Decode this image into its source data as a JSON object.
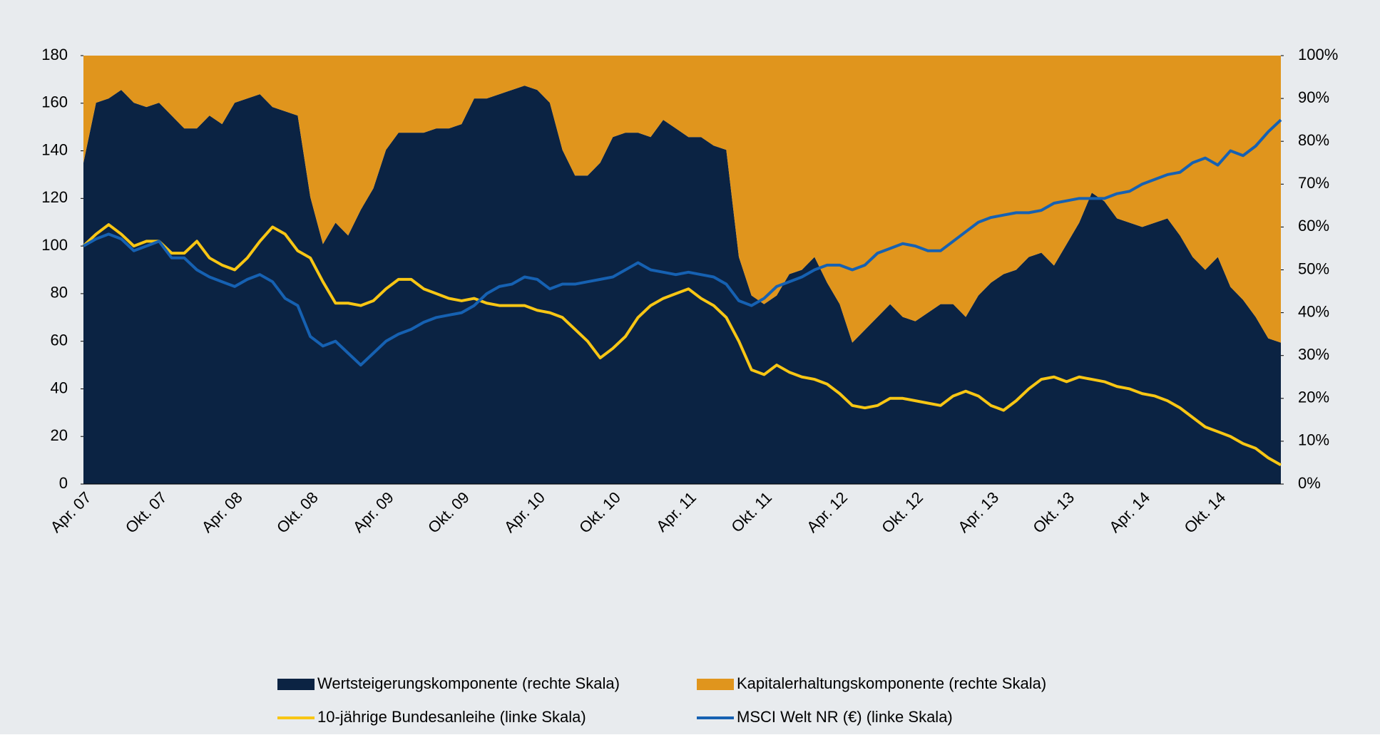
{
  "chart_data": {
    "type": "area-line",
    "categories": [
      "Apr. 07",
      null,
      null,
      null,
      null,
      null,
      "Okt. 07",
      null,
      null,
      null,
      null,
      null,
      "Apr. 08",
      null,
      null,
      null,
      null,
      null,
      "Okt. 08",
      null,
      null,
      null,
      null,
      null,
      "Apr. 09",
      null,
      null,
      null,
      null,
      null,
      "Okt. 09",
      null,
      null,
      null,
      null,
      null,
      "Apr. 10",
      null,
      null,
      null,
      null,
      null,
      "Okt. 10",
      null,
      null,
      null,
      null,
      null,
      "Apr. 11",
      null,
      null,
      null,
      null,
      null,
      "Okt. 11",
      null,
      null,
      null,
      null,
      null,
      "Apr. 12",
      null,
      null,
      null,
      null,
      null,
      "Okt. 12",
      null,
      null,
      null,
      null,
      null,
      "Apr. 13",
      null,
      null,
      null,
      null,
      null,
      "Okt. 13",
      null,
      null,
      null,
      null,
      null,
      "Apr. 14",
      null,
      null,
      null,
      null,
      null,
      "Okt. 14",
      null,
      null,
      null,
      null,
      null
    ],
    "series": [
      {
        "name": "Wertsteigerungskomponente (rechte Skala)",
        "type": "area",
        "axis": "y2",
        "color": "#0b2343",
        "values": [
          75,
          89,
          90,
          92,
          89,
          88,
          89,
          86,
          83,
          83,
          86,
          84,
          89,
          90,
          91,
          88,
          87,
          86,
          67,
          56,
          61,
          58,
          64,
          69,
          78,
          82,
          82,
          82,
          83,
          83,
          84,
          90,
          90,
          91,
          92,
          93,
          92,
          89,
          78,
          72,
          72,
          75,
          81,
          82,
          82,
          81,
          85,
          83,
          81,
          81,
          79,
          78,
          53,
          44,
          42,
          44,
          49,
          50,
          53,
          47,
          42,
          33,
          36,
          39,
          42,
          39,
          38,
          40,
          42,
          42,
          39,
          44,
          47,
          49,
          50,
          53,
          54,
          51,
          56,
          61,
          68,
          66,
          62,
          61,
          60,
          61,
          62,
          58,
          53,
          50,
          53,
          46,
          43,
          39,
          34,
          33
        ]
      },
      {
        "name": "Kapitalerhaltungskomponente (rechte Skala)",
        "type": "area",
        "axis": "y2",
        "color": "#e0951d",
        "values": [
          25,
          11,
          10,
          8,
          11,
          12,
          11,
          14,
          17,
          17,
          14,
          16,
          11,
          10,
          9,
          12,
          13,
          14,
          33,
          44,
          39,
          42,
          36,
          31,
          22,
          18,
          18,
          18,
          17,
          17,
          16,
          10,
          10,
          9,
          8,
          7,
          8,
          11,
          22,
          28,
          28,
          25,
          19,
          18,
          18,
          19,
          15,
          17,
          19,
          19,
          21,
          22,
          47,
          56,
          58,
          56,
          51,
          50,
          47,
          53,
          58,
          67,
          64,
          61,
          58,
          61,
          62,
          60,
          58,
          58,
          61,
          56,
          53,
          51,
          50,
          47,
          46,
          49,
          44,
          39,
          32,
          34,
          38,
          39,
          40,
          39,
          38,
          42,
          47,
          50,
          47,
          54,
          57,
          61,
          66,
          67
        ]
      },
      {
        "name": "10-jährige  Bundesanleihe (linke Skala)",
        "type": "line",
        "axis": "y",
        "color": "#f8c614",
        "values": [
          100,
          105,
          109,
          105,
          100,
          102,
          102,
          97,
          97,
          102,
          95,
          92,
          90,
          95,
          102,
          108,
          105,
          98,
          95,
          85,
          76,
          76,
          75,
          77,
          82,
          86,
          86,
          82,
          80,
          78,
          77,
          78,
          76,
          75,
          75,
          75,
          73,
          72,
          70,
          65,
          60,
          53,
          57,
          62,
          70,
          75,
          78,
          80,
          82,
          78,
          75,
          70,
          60,
          48,
          46,
          50,
          47,
          45,
          44,
          42,
          38,
          33,
          32,
          33,
          36,
          36,
          35,
          34,
          33,
          37,
          39,
          37,
          33,
          31,
          35,
          40,
          44,
          45,
          43,
          45,
          44,
          43,
          41,
          40,
          38,
          37,
          35,
          32,
          28,
          24,
          22,
          20,
          17,
          15,
          11,
          8
        ]
      },
      {
        "name": "MSCI Welt NR (€) (linke Skala)",
        "type": "line",
        "axis": "y",
        "color": "#1661b2",
        "values": [
          100,
          103,
          105,
          103,
          98,
          100,
          102,
          95,
          95,
          90,
          87,
          85,
          83,
          86,
          88,
          85,
          78,
          75,
          62,
          58,
          60,
          55,
          50,
          55,
          60,
          63,
          65,
          68,
          70,
          71,
          72,
          75,
          80,
          83,
          84,
          87,
          86,
          82,
          84,
          84,
          85,
          86,
          87,
          90,
          93,
          90,
          89,
          88,
          89,
          88,
          87,
          84,
          77,
          75,
          78,
          83,
          85,
          87,
          90,
          92,
          92,
          90,
          92,
          97,
          99,
          101,
          100,
          98,
          98,
          102,
          106,
          110,
          112,
          113,
          114,
          114,
          115,
          118,
          119,
          120,
          120,
          120,
          122,
          123,
          126,
          128,
          130,
          131,
          135,
          137,
          134,
          140,
          138,
          142,
          148,
          153
        ]
      }
    ],
    "ylim": [
      0,
      180
    ],
    "yticks": [
      0,
      20,
      40,
      60,
      80,
      100,
      120,
      140,
      160,
      180
    ],
    "y2lim": [
      0,
      100
    ],
    "y2ticks": [
      {
        "value": 0,
        "label": "0%"
      },
      {
        "value": 10,
        "label": "10%"
      },
      {
        "value": 20,
        "label": "20%"
      },
      {
        "value": 30,
        "label": "30%"
      },
      {
        "value": 40,
        "label": "40%"
      },
      {
        "value": 50,
        "label": "50%"
      },
      {
        "value": 60,
        "label": "60%"
      },
      {
        "value": 70,
        "label": "70%"
      },
      {
        "value": 80,
        "label": "80%"
      },
      {
        "value": 90,
        "label": "90%"
      },
      {
        "value": 100,
        "label": "100%"
      }
    ],
    "legend": "bottom"
  }
}
